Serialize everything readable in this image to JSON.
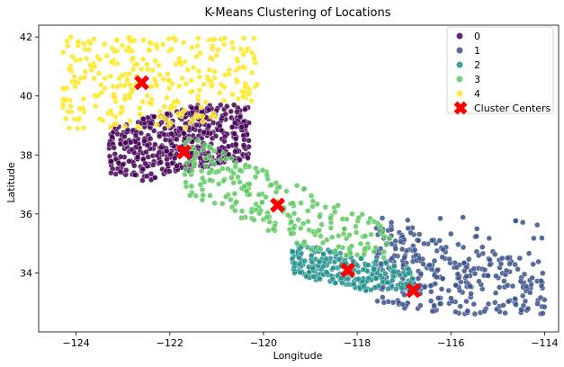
{
  "chart_data": {
    "type": "scatter",
    "title": "K-Means Clustering of Locations",
    "xlabel": "Longitude",
    "ylabel": "Latitude",
    "xlim": [
      -124.8,
      -113.7
    ],
    "ylim": [
      32.0,
      42.4
    ],
    "xticks": [
      -124,
      -122,
      -120,
      -118,
      -116,
      -114
    ],
    "yticks": [
      34,
      36,
      38,
      40,
      42
    ],
    "grid": false,
    "legend_placement": "top-right",
    "series": [
      {
        "name": "0",
        "color": "#440154",
        "regions": [
          {
            "x": [
              -123.3,
              -120.3
            ],
            "y": [
              36.9,
              39.7
            ]
          }
        ]
      },
      {
        "name": "1",
        "color": "#3b528b",
        "regions": [
          {
            "x": [
              -117.6,
              -114.0
            ],
            "y": [
              32.6,
              35.9
            ]
          }
        ]
      },
      {
        "name": "2",
        "color": "#21918c",
        "regions": [
          {
            "x": [
              -119.4,
              -116.8
            ],
            "y": [
              33.4,
              35.4
            ]
          }
        ]
      },
      {
        "name": "3",
        "color": "#5ec962",
        "regions": [
          {
            "x": [
              -121.7,
              -117.2
            ],
            "y": [
              34.5,
              38.6
            ]
          }
        ]
      },
      {
        "name": "4",
        "color": "#fde725",
        "regions": [
          {
            "x": [
              -124.3,
              -120.1
            ],
            "y": [
              38.9,
              42.0
            ]
          }
        ]
      }
    ],
    "centers": {
      "name": "Cluster Centers",
      "color": "#ff0000",
      "points": [
        {
          "x": -121.7,
          "y": 38.1
        },
        {
          "x": -116.8,
          "y": 33.4
        },
        {
          "x": -118.2,
          "y": 34.1
        },
        {
          "x": -119.7,
          "y": 36.3
        },
        {
          "x": -122.6,
          "y": 40.45
        }
      ]
    }
  }
}
